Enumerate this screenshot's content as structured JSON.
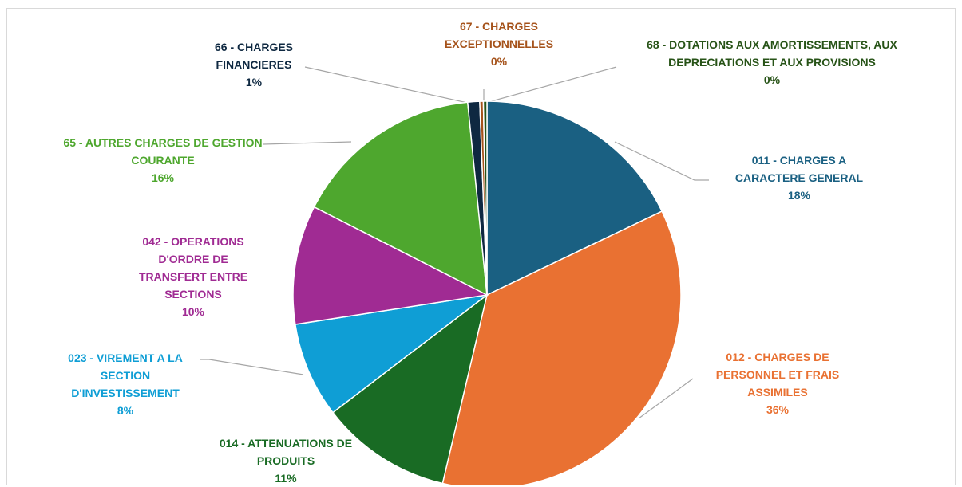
{
  "chart_data": {
    "type": "pie",
    "categories": [
      "011 - CHARGES A CARACTERE GENERAL",
      "012 - CHARGES DE PERSONNEL ET FRAIS ASSIMILES",
      "014 - ATTENUATIONS DE PRODUITS",
      "023 - VIREMENT A LA SECTION D'INVESTISSEMENT",
      "042 - OPERATIONS D'ORDRE DE TRANSFERT ENTRE SECTIONS",
      "65 - AUTRES CHARGES DE GESTION COURANTE",
      "66 - CHARGES FINANCIERES",
      "67 - CHARGES EXCEPTIONNELLES",
      "68 - DOTATIONS AUX AMORTISSEMENTS, AUX DEPRECIATIONS ET AUX PROVISIONS"
    ],
    "values": [
      18,
      36,
      11,
      8,
      10,
      16,
      1,
      0.3,
      0.3
    ],
    "value_labels": [
      "18%",
      "36%",
      "11%",
      "8%",
      "10%",
      "16%",
      "1%",
      "0%",
      "0%"
    ],
    "colors": [
      "#1a6082",
      "#e97132",
      "#196b24",
      "#0f9ed5",
      "#a02b93",
      "#4ea72e",
      "#0e2841",
      "#a5521a",
      "#275317"
    ]
  }
}
